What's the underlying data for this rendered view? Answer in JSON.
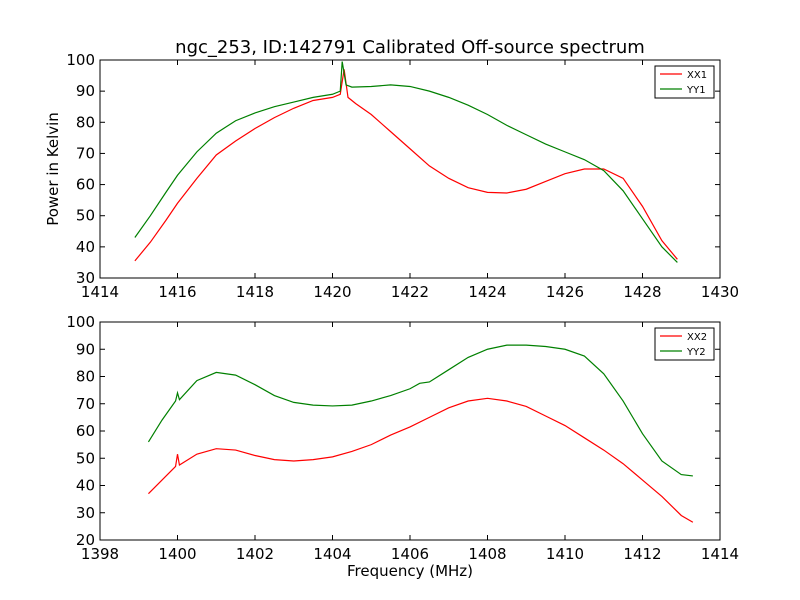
{
  "chart_data": [
    {
      "type": "line",
      "title": "ngc_253, ID:142791 Calibrated Off-source spectrum",
      "xlabel": "",
      "ylabel": "Power in Kelvin",
      "xlim": [
        1414,
        1430
      ],
      "ylim": [
        30,
        100
      ],
      "xticks": [
        "1414",
        "1416",
        "1418",
        "1420",
        "1422",
        "1424",
        "1426",
        "1428",
        "1430"
      ],
      "yticks": [
        "30",
        "40",
        "50",
        "60",
        "70",
        "80",
        "90",
        "100"
      ],
      "legend_position": "top-right",
      "series": [
        {
          "name": "XX1",
          "color": "#ff0000",
          "x": [
            1414.9,
            1415.3,
            1415.7,
            1416.0,
            1416.5,
            1417.0,
            1417.5,
            1418.0,
            1418.5,
            1419.0,
            1419.5,
            1420.0,
            1420.2,
            1420.3,
            1420.4,
            1420.6,
            1421.0,
            1421.5,
            1422.0,
            1422.5,
            1423.0,
            1423.5,
            1424.0,
            1424.5,
            1425.0,
            1425.5,
            1426.0,
            1426.5,
            1427.0,
            1427.5,
            1428.0,
            1428.5,
            1428.9
          ],
          "y": [
            35.5,
            41.5,
            48.5,
            54,
            62,
            69.5,
            74,
            78,
            81.5,
            84.5,
            87,
            88,
            89,
            97,
            88,
            86,
            82.5,
            77,
            71.5,
            66,
            62,
            59,
            57.5,
            57.3,
            58.5,
            61,
            63.5,
            65,
            65,
            62,
            53,
            42,
            36
          ]
        },
        {
          "name": "YY1",
          "color": "#008000",
          "x": [
            1414.9,
            1415.3,
            1415.7,
            1416.0,
            1416.5,
            1417.0,
            1417.5,
            1418.0,
            1418.5,
            1419.0,
            1419.5,
            1420.0,
            1420.2,
            1420.25,
            1420.35,
            1420.5,
            1421.0,
            1421.5,
            1422.0,
            1422.5,
            1423.0,
            1423.5,
            1424.0,
            1424.5,
            1425.0,
            1425.5,
            1426.0,
            1426.5,
            1427.0,
            1427.5,
            1428.0,
            1428.5,
            1428.9
          ],
          "y": [
            43,
            50,
            57.5,
            63,
            70.5,
            76.5,
            80.5,
            83,
            85,
            86.5,
            88,
            89,
            90,
            99.5,
            92,
            91.3,
            91.5,
            92,
            91.5,
            90,
            88,
            85.5,
            82.5,
            79,
            76,
            73,
            70.5,
            68,
            64.5,
            58,
            49,
            40,
            35
          ]
        }
      ]
    },
    {
      "type": "line",
      "title": "",
      "xlabel": "Frequency (MHz)",
      "ylabel": "",
      "xlim": [
        1398,
        1414
      ],
      "ylim": [
        20,
        100
      ],
      "xticks": [
        "1398",
        "1400",
        "1402",
        "1404",
        "1406",
        "1408",
        "1410",
        "1412",
        "1414"
      ],
      "yticks": [
        "20",
        "30",
        "40",
        "50",
        "60",
        "70",
        "80",
        "90",
        "100"
      ],
      "legend_position": "top-right",
      "series": [
        {
          "name": "XX2",
          "color": "#ff0000",
          "x": [
            1399.25,
            1399.6,
            1399.95,
            1400.0,
            1400.05,
            1400.5,
            1401.0,
            1401.5,
            1402.0,
            1402.5,
            1403.0,
            1403.5,
            1404.0,
            1404.5,
            1405.0,
            1405.5,
            1406.0,
            1406.5,
            1407.0,
            1407.5,
            1408.0,
            1408.5,
            1409.0,
            1409.5,
            1410.0,
            1410.5,
            1411.0,
            1411.5,
            1412.0,
            1412.5,
            1413.0,
            1413.3
          ],
          "y": [
            37,
            42,
            47,
            51.5,
            47.5,
            51.5,
            53.5,
            53,
            51,
            49.5,
            49,
            49.5,
            50.5,
            52.5,
            55,
            58.5,
            61.5,
            65,
            68.5,
            71,
            72,
            71,
            69,
            65.5,
            62,
            57.5,
            53,
            48,
            42,
            36,
            29,
            26.5
          ]
        },
        {
          "name": "YY2",
          "color": "#008000",
          "x": [
            1399.25,
            1399.6,
            1399.95,
            1400.0,
            1400.05,
            1400.5,
            1401.0,
            1401.5,
            1402.0,
            1402.5,
            1403.0,
            1403.5,
            1404.0,
            1404.5,
            1405.0,
            1405.5,
            1406.0,
            1406.25,
            1406.5,
            1407.0,
            1407.5,
            1408.0,
            1408.5,
            1409.0,
            1409.5,
            1410.0,
            1410.5,
            1411.0,
            1411.5,
            1412.0,
            1412.5,
            1413.0,
            1413.3
          ],
          "y": [
            56,
            64,
            71,
            74,
            71.5,
            78.5,
            81.5,
            80.5,
            77,
            73,
            70.5,
            69.5,
            69.2,
            69.5,
            71,
            73,
            75.5,
            77.5,
            78,
            82.5,
            87,
            90,
            91.5,
            91.5,
            91,
            90,
            87.5,
            81,
            71,
            59,
            49,
            44,
            43.5
          ]
        }
      ]
    }
  ]
}
